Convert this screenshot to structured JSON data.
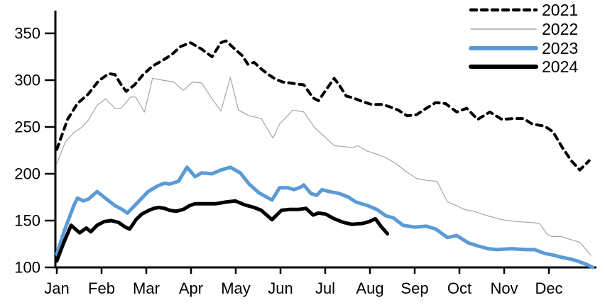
{
  "chart_data": {
    "type": "line",
    "title": "",
    "grid": false,
    "legend_position": "top-right",
    "x_axis": {
      "unit": "month",
      "tick_labels": [
        "Jan",
        "Feb",
        "Mar",
        "Apr",
        "May",
        "Jun",
        "Jul",
        "Aug",
        "Sep",
        "Oct",
        "Nov",
        "Dec"
      ],
      "range": [
        0,
        12
      ]
    },
    "y_axis": {
      "min": 100,
      "max": 350,
      "tick_step": 50,
      "tick_labels": [
        "100",
        "150",
        "200",
        "250",
        "300",
        "350"
      ]
    },
    "colors": {
      "axis": "#000000",
      "series_2021": "#000000",
      "series_2022": "#a6a6a6",
      "series_2023": "#5b9bd5",
      "series_2024": "#000000"
    },
    "series": [
      {
        "name": "2022",
        "style": "solid",
        "color": "#a6a6a6",
        "width": 1.2,
        "points": [
          [
            0,
            211
          ],
          [
            0.19,
            234
          ],
          [
            0.38,
            244
          ],
          [
            0.54,
            249
          ],
          [
            0.7,
            257
          ],
          [
            0.9,
            273
          ],
          [
            1.09,
            280
          ],
          [
            1.3,
            270
          ],
          [
            1.44,
            270
          ],
          [
            1.65,
            282
          ],
          [
            1.76,
            282
          ],
          [
            1.96,
            266
          ],
          [
            2.14,
            302
          ],
          [
            2.36,
            300
          ],
          [
            2.61,
            298
          ],
          [
            2.83,
            289
          ],
          [
            3.04,
            298
          ],
          [
            3.24,
            297
          ],
          [
            3.47,
            280
          ],
          [
            3.67,
            267
          ],
          [
            3.88,
            303
          ],
          [
            4.06,
            268
          ],
          [
            4.3,
            262
          ],
          [
            4.57,
            259
          ],
          [
            4.83,
            238
          ],
          [
            4.98,
            253
          ],
          [
            5.28,
            268
          ],
          [
            5.52,
            266
          ],
          [
            5.77,
            249
          ],
          [
            6.0,
            239
          ],
          [
            6.2,
            230
          ],
          [
            6.41,
            229
          ],
          [
            6.63,
            228
          ],
          [
            6.72,
            230
          ],
          [
            6.95,
            224
          ],
          [
            7.15,
            221
          ],
          [
            7.36,
            217
          ],
          [
            7.58,
            211
          ],
          [
            7.82,
            202
          ],
          [
            8.04,
            195
          ],
          [
            8.26,
            193
          ],
          [
            8.5,
            192
          ],
          [
            8.73,
            170
          ],
          [
            8.94,
            166
          ],
          [
            9.1,
            162
          ],
          [
            9.32,
            160
          ],
          [
            9.64,
            155
          ],
          [
            9.95,
            151
          ],
          [
            10.27,
            149
          ],
          [
            10.59,
            148
          ],
          [
            10.79,
            147
          ],
          [
            10.95,
            136
          ],
          [
            11.06,
            133
          ],
          [
            11.27,
            133
          ],
          [
            11.47,
            130
          ],
          [
            11.69,
            127
          ],
          [
            11.85,
            118
          ],
          [
            11.94,
            113
          ]
        ]
      },
      {
        "name": "2021",
        "style": "dashed",
        "color": "#000000",
        "width": 4,
        "points": [
          [
            0,
            226
          ],
          [
            0.24,
            258
          ],
          [
            0.46,
            275
          ],
          [
            0.7,
            285
          ],
          [
            0.93,
            299
          ],
          [
            1.16,
            307
          ],
          [
            1.3,
            306
          ],
          [
            1.44,
            295
          ],
          [
            1.55,
            288
          ],
          [
            1.74,
            295
          ],
          [
            1.93,
            306
          ],
          [
            2.14,
            315
          ],
          [
            2.36,
            321
          ],
          [
            2.56,
            327
          ],
          [
            2.77,
            336
          ],
          [
            2.99,
            340
          ],
          [
            3.24,
            333
          ],
          [
            3.35,
            329
          ],
          [
            3.47,
            325
          ],
          [
            3.67,
            340
          ],
          [
            3.78,
            342
          ],
          [
            4.03,
            331
          ],
          [
            4.15,
            326
          ],
          [
            4.27,
            317
          ],
          [
            4.41,
            319
          ],
          [
            4.57,
            312
          ],
          [
            4.73,
            306
          ],
          [
            4.89,
            301
          ],
          [
            5.05,
            298
          ],
          [
            5.21,
            297
          ],
          [
            5.36,
            296
          ],
          [
            5.52,
            295
          ],
          [
            5.73,
            281
          ],
          [
            5.85,
            278
          ],
          [
            6.2,
            302
          ],
          [
            6.31,
            295
          ],
          [
            6.47,
            283
          ],
          [
            6.63,
            281
          ],
          [
            6.84,
            277
          ],
          [
            7.04,
            274
          ],
          [
            7.26,
            274
          ],
          [
            7.42,
            272
          ],
          [
            7.63,
            268
          ],
          [
            7.83,
            262
          ],
          [
            8.04,
            263
          ],
          [
            8.26,
            270
          ],
          [
            8.47,
            276
          ],
          [
            8.69,
            275
          ],
          [
            8.94,
            266
          ],
          [
            9.16,
            270
          ],
          [
            9.41,
            258
          ],
          [
            9.68,
            266
          ],
          [
            9.95,
            258
          ],
          [
            10.21,
            259
          ],
          [
            10.43,
            259
          ],
          [
            10.63,
            253
          ],
          [
            10.9,
            251
          ],
          [
            11.09,
            245
          ],
          [
            11.3,
            228
          ],
          [
            11.5,
            214
          ],
          [
            11.69,
            204
          ],
          [
            11.9,
            214
          ]
        ]
      },
      {
        "name": "2023",
        "style": "solid",
        "color": "#5b9bd5",
        "width": 5,
        "points": [
          [
            0,
            114
          ],
          [
            0.16,
            138
          ],
          [
            0.38,
            166
          ],
          [
            0.46,
            174
          ],
          [
            0.59,
            171
          ],
          [
            0.71,
            173
          ],
          [
            0.9,
            181
          ],
          [
            1.11,
            173
          ],
          [
            1.3,
            166
          ],
          [
            1.46,
            162
          ],
          [
            1.58,
            158
          ],
          [
            1.82,
            170
          ],
          [
            2.04,
            181
          ],
          [
            2.25,
            187
          ],
          [
            2.41,
            190
          ],
          [
            2.52,
            189
          ],
          [
            2.72,
            192
          ],
          [
            2.91,
            207
          ],
          [
            3.09,
            197
          ],
          [
            3.24,
            201
          ],
          [
            3.47,
            200
          ],
          [
            3.67,
            204
          ],
          [
            3.88,
            207
          ],
          [
            4.1,
            201
          ],
          [
            4.3,
            189
          ],
          [
            4.51,
            180
          ],
          [
            4.81,
            172
          ],
          [
            4.98,
            185
          ],
          [
            5.17,
            185
          ],
          [
            5.3,
            183
          ],
          [
            5.46,
            186
          ],
          [
            5.52,
            188
          ],
          [
            5.68,
            179
          ],
          [
            5.81,
            177
          ],
          [
            5.93,
            183
          ],
          [
            6.09,
            181
          ],
          [
            6.31,
            179
          ],
          [
            6.52,
            175
          ],
          [
            6.68,
            170
          ],
          [
            6.95,
            166
          ],
          [
            7.15,
            162
          ],
          [
            7.36,
            155
          ],
          [
            7.52,
            153
          ],
          [
            7.74,
            145
          ],
          [
            7.99,
            143
          ],
          [
            8.26,
            144
          ],
          [
            8.47,
            141
          ],
          [
            8.73,
            132
          ],
          [
            8.94,
            134
          ],
          [
            9.21,
            126
          ],
          [
            9.41,
            123
          ],
          [
            9.64,
            120
          ],
          [
            9.84,
            119
          ],
          [
            10.16,
            120
          ],
          [
            10.47,
            119
          ],
          [
            10.68,
            119
          ],
          [
            10.9,
            115
          ],
          [
            11.11,
            113
          ],
          [
            11.27,
            111
          ],
          [
            11.47,
            109
          ],
          [
            11.63,
            107
          ],
          [
            11.85,
            103
          ],
          [
            11.98,
            100
          ]
        ]
      },
      {
        "name": "2024",
        "style": "solid",
        "color": "#000000",
        "width": 5,
        "points": [
          [
            0,
            107
          ],
          [
            0.16,
            127
          ],
          [
            0.32,
            145
          ],
          [
            0.51,
            137
          ],
          [
            0.66,
            142
          ],
          [
            0.76,
            138
          ],
          [
            0.9,
            145
          ],
          [
            1.06,
            149
          ],
          [
            1.22,
            150
          ],
          [
            1.38,
            148
          ],
          [
            1.53,
            143
          ],
          [
            1.63,
            141
          ],
          [
            1.77,
            151
          ],
          [
            1.9,
            157
          ],
          [
            2.06,
            161
          ],
          [
            2.17,
            163
          ],
          [
            2.28,
            164
          ],
          [
            2.41,
            163
          ],
          [
            2.52,
            161
          ],
          [
            2.67,
            160
          ],
          [
            2.83,
            162
          ],
          [
            2.97,
            166
          ],
          [
            3.09,
            168
          ],
          [
            3.31,
            168
          ],
          [
            3.56,
            168
          ],
          [
            3.8,
            170
          ],
          [
            3.99,
            171
          ],
          [
            4.19,
            167
          ],
          [
            4.41,
            164
          ],
          [
            4.57,
            161
          ],
          [
            4.81,
            151
          ],
          [
            5.02,
            161
          ],
          [
            5.21,
            162
          ],
          [
            5.41,
            162
          ],
          [
            5.57,
            163
          ],
          [
            5.73,
            156
          ],
          [
            5.85,
            158
          ],
          [
            6.01,
            157
          ],
          [
            6.2,
            152
          ],
          [
            6.41,
            148
          ],
          [
            6.6,
            146
          ],
          [
            6.84,
            147
          ],
          [
            6.99,
            149
          ],
          [
            7.12,
            152
          ],
          [
            7.26,
            143
          ],
          [
            7.39,
            136
          ]
        ]
      }
    ],
    "legend": {
      "items": [
        {
          "label": "2021"
        },
        {
          "label": "2022"
        },
        {
          "label": "2023"
        },
        {
          "label": "2024"
        }
      ]
    }
  }
}
